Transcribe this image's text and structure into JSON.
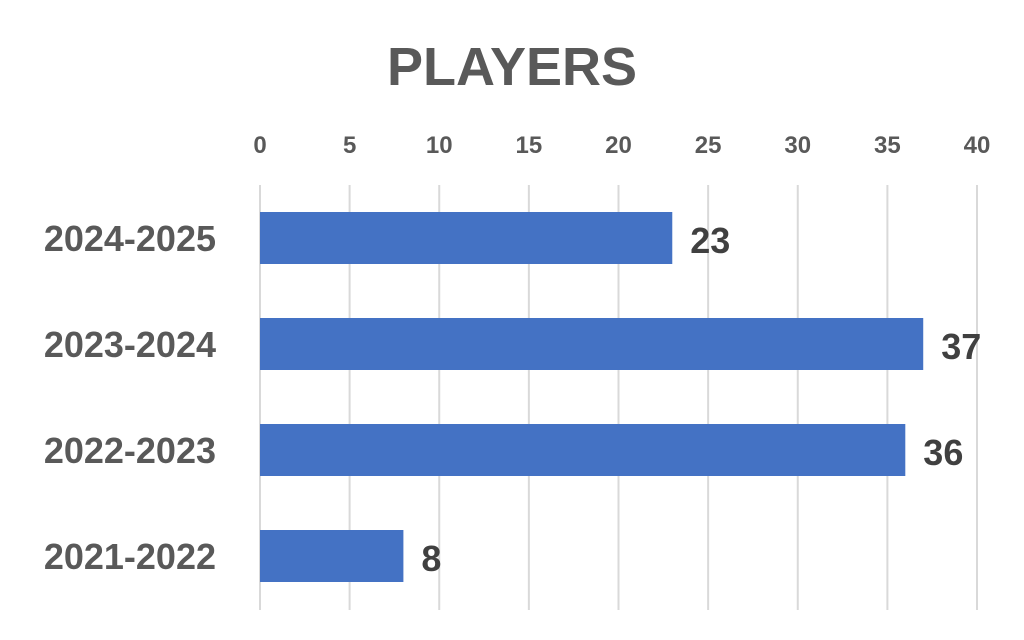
{
  "chart_data": {
    "type": "bar",
    "orientation": "horizontal",
    "title": "PLAYERS",
    "xlabel": "",
    "ylabel": "",
    "categories": [
      "2024-2025",
      "2023-2024",
      "2022-2023",
      "2021-2022"
    ],
    "values": [
      23,
      37,
      36,
      8
    ],
    "data_labels": [
      "23",
      "37",
      "36",
      "8"
    ],
    "x_ticks": [
      "0",
      "5",
      "10",
      "15",
      "20",
      "25",
      "30",
      "35",
      "40"
    ],
    "xlim": [
      0,
      40
    ],
    "x_axis_position": "top",
    "grid": true,
    "legend": false,
    "colors": {
      "bar": "#4472c4",
      "grid": "#d9d9d9",
      "text": "#595959",
      "label": "#404040"
    }
  }
}
